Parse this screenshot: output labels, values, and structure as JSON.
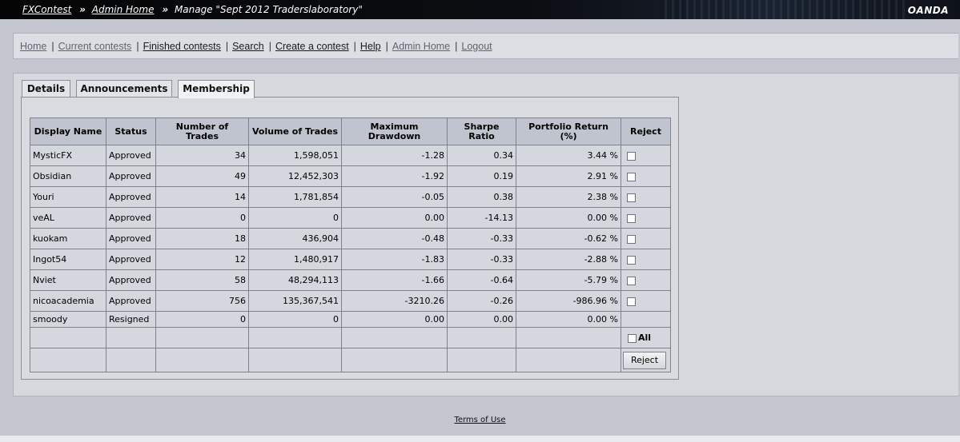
{
  "topbar": {
    "crumb1": "FXContest",
    "crumb2": "Admin Home",
    "crumb3": "Manage \"Sept 2012 Traderslaboratory\"",
    "sep": "»",
    "brand": "OANDA"
  },
  "nav": {
    "items": [
      {
        "label": "Home"
      },
      {
        "label": "Current contests"
      },
      {
        "label": "Finished contests"
      },
      {
        "label": "Search"
      },
      {
        "label": "Create a contest"
      },
      {
        "label": "Help"
      },
      {
        "label": "Admin Home"
      },
      {
        "label": "Logout"
      }
    ],
    "separator": "|"
  },
  "tabs": [
    {
      "label": "Details"
    },
    {
      "label": "Announcements"
    },
    {
      "label": "Membership"
    }
  ],
  "table": {
    "headers": [
      "Display Name",
      "Status",
      "Number of Trades",
      "Volume of Trades",
      "Maximum Drawdown",
      "Sharpe Ratio",
      "Portfolio Return (%)",
      "Reject"
    ],
    "rows": [
      {
        "name": "MysticFX",
        "status": "Approved",
        "trades": "34",
        "volume": "1,598,051",
        "drawdown": "-1.28",
        "sharpe": "0.34",
        "return": "3.44 %",
        "reject": true
      },
      {
        "name": "Obsidian",
        "status": "Approved",
        "trades": "49",
        "volume": "12,452,303",
        "drawdown": "-1.92",
        "sharpe": "0.19",
        "return": "2.91 %",
        "reject": true
      },
      {
        "name": "Youri",
        "status": "Approved",
        "trades": "14",
        "volume": "1,781,854",
        "drawdown": "-0.05",
        "sharpe": "0.38",
        "return": "2.38 %",
        "reject": true
      },
      {
        "name": "veAL",
        "status": "Approved",
        "trades": "0",
        "volume": "0",
        "drawdown": "0.00",
        "sharpe": "-14.13",
        "return": "0.00 %",
        "reject": true
      },
      {
        "name": "kuokam",
        "status": "Approved",
        "trades": "18",
        "volume": "436,904",
        "drawdown": "-0.48",
        "sharpe": "-0.33",
        "return": "-0.62 %",
        "reject": true
      },
      {
        "name": "Ingot54",
        "status": "Approved",
        "trades": "12",
        "volume": "1,480,917",
        "drawdown": "-1.83",
        "sharpe": "-0.33",
        "return": "-2.88 %",
        "reject": true
      },
      {
        "name": "Nviet",
        "status": "Approved",
        "trades": "58",
        "volume": "48,294,113",
        "drawdown": "-1.66",
        "sharpe": "-0.64",
        "return": "-5.79 %",
        "reject": true
      },
      {
        "name": "nicoacademia",
        "status": "Approved",
        "trades": "756",
        "volume": "135,367,541",
        "drawdown": "-3210.26",
        "sharpe": "-0.26",
        "return": "-986.96 %",
        "reject": true
      },
      {
        "name": "smoody",
        "status": "Resigned",
        "trades": "0",
        "volume": "0",
        "drawdown": "0.00",
        "sharpe": "0.00",
        "return": "0.00 %",
        "reject": false
      }
    ],
    "all_label": "All",
    "reject_button": "Reject"
  },
  "footer": {
    "terms": "Terms of Use"
  }
}
